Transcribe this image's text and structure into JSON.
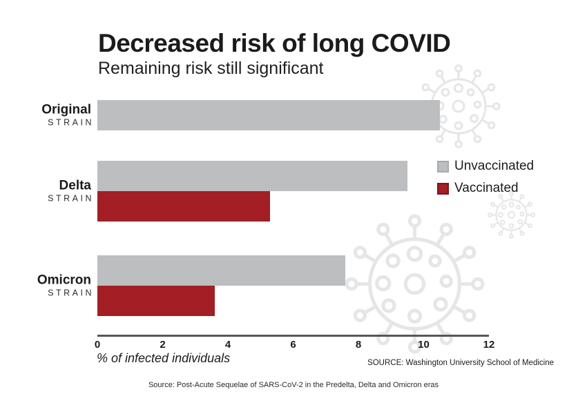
{
  "header": {
    "title": "Decreased risk of long COVID",
    "subtitle": "Remaining risk still significant"
  },
  "chart_data": {
    "type": "bar",
    "orientation": "horizontal",
    "title": "Decreased risk of long COVID",
    "subtitle": "Remaining risk still significant",
    "categories": [
      "Original",
      "Delta",
      "Omicron"
    ],
    "category_sublabel": "STRAIN",
    "series": [
      {
        "name": "Unvaccinated",
        "color": "#bcbec0",
        "border_color": "#a7a9ac",
        "values": [
          10.5,
          9.5,
          7.6
        ]
      },
      {
        "name": "Vaccinated",
        "color": "#a31e25",
        "border_color": "#7a151b",
        "values": [
          null,
          5.3,
          3.6
        ]
      }
    ],
    "xlabel": "% of infected individuals",
    "xlim": [
      0,
      12
    ],
    "xticks": [
      "0",
      "2",
      "4",
      "6",
      "8",
      "10",
      "12"
    ],
    "grid": false,
    "legend_position": "right of Delta bars"
  },
  "footer": {
    "source_right": "SOURCE: Washington University School of Medicine",
    "source_bottom": "Source: Post-Acute Sequelae of SARS-CoV-2 in the Predelta, Delta and Omicron eras"
  },
  "decor": {
    "virus_watermark_color": "#e6e6e6",
    "axis_color": "#55565a"
  }
}
